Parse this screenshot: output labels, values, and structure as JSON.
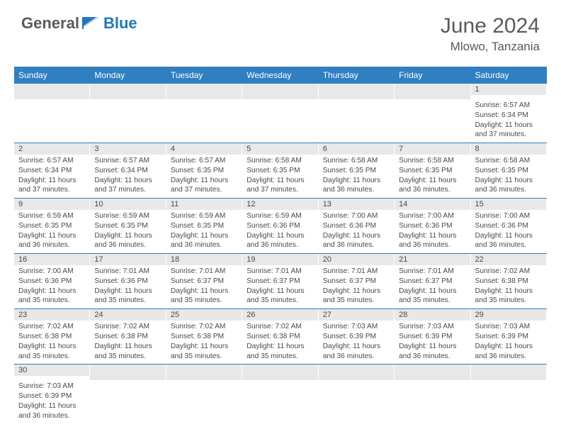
{
  "brand": {
    "part1": "General",
    "part2": "Blue"
  },
  "title": "June 2024",
  "location": "Mlowo, Tanzania",
  "colors": {
    "header_bg": "#2f7fc1",
    "header_text": "#ffffff",
    "daynum_bg": "#e8e8e8",
    "text": "#4a4a4a",
    "rule": "#2f7fc1"
  },
  "days_of_week": [
    "Sunday",
    "Monday",
    "Tuesday",
    "Wednesday",
    "Thursday",
    "Friday",
    "Saturday"
  ],
  "weeks": [
    [
      {
        "n": "",
        "sr": "",
        "ss": "",
        "dl": ""
      },
      {
        "n": "",
        "sr": "",
        "ss": "",
        "dl": ""
      },
      {
        "n": "",
        "sr": "",
        "ss": "",
        "dl": ""
      },
      {
        "n": "",
        "sr": "",
        "ss": "",
        "dl": ""
      },
      {
        "n": "",
        "sr": "",
        "ss": "",
        "dl": ""
      },
      {
        "n": "",
        "sr": "",
        "ss": "",
        "dl": ""
      },
      {
        "n": "1",
        "sr": "Sunrise: 6:57 AM",
        "ss": "Sunset: 6:34 PM",
        "dl": "Daylight: 11 hours and 37 minutes."
      }
    ],
    [
      {
        "n": "2",
        "sr": "Sunrise: 6:57 AM",
        "ss": "Sunset: 6:34 PM",
        "dl": "Daylight: 11 hours and 37 minutes."
      },
      {
        "n": "3",
        "sr": "Sunrise: 6:57 AM",
        "ss": "Sunset: 6:34 PM",
        "dl": "Daylight: 11 hours and 37 minutes."
      },
      {
        "n": "4",
        "sr": "Sunrise: 6:57 AM",
        "ss": "Sunset: 6:35 PM",
        "dl": "Daylight: 11 hours and 37 minutes."
      },
      {
        "n": "5",
        "sr": "Sunrise: 6:58 AM",
        "ss": "Sunset: 6:35 PM",
        "dl": "Daylight: 11 hours and 37 minutes."
      },
      {
        "n": "6",
        "sr": "Sunrise: 6:58 AM",
        "ss": "Sunset: 6:35 PM",
        "dl": "Daylight: 11 hours and 36 minutes."
      },
      {
        "n": "7",
        "sr": "Sunrise: 6:58 AM",
        "ss": "Sunset: 6:35 PM",
        "dl": "Daylight: 11 hours and 36 minutes."
      },
      {
        "n": "8",
        "sr": "Sunrise: 6:58 AM",
        "ss": "Sunset: 6:35 PM",
        "dl": "Daylight: 11 hours and 36 minutes."
      }
    ],
    [
      {
        "n": "9",
        "sr": "Sunrise: 6:59 AM",
        "ss": "Sunset: 6:35 PM",
        "dl": "Daylight: 11 hours and 36 minutes."
      },
      {
        "n": "10",
        "sr": "Sunrise: 6:59 AM",
        "ss": "Sunset: 6:35 PM",
        "dl": "Daylight: 11 hours and 36 minutes."
      },
      {
        "n": "11",
        "sr": "Sunrise: 6:59 AM",
        "ss": "Sunset: 6:35 PM",
        "dl": "Daylight: 11 hours and 36 minutes."
      },
      {
        "n": "12",
        "sr": "Sunrise: 6:59 AM",
        "ss": "Sunset: 6:36 PM",
        "dl": "Daylight: 11 hours and 36 minutes."
      },
      {
        "n": "13",
        "sr": "Sunrise: 7:00 AM",
        "ss": "Sunset: 6:36 PM",
        "dl": "Daylight: 11 hours and 36 minutes."
      },
      {
        "n": "14",
        "sr": "Sunrise: 7:00 AM",
        "ss": "Sunset: 6:36 PM",
        "dl": "Daylight: 11 hours and 36 minutes."
      },
      {
        "n": "15",
        "sr": "Sunrise: 7:00 AM",
        "ss": "Sunset: 6:36 PM",
        "dl": "Daylight: 11 hours and 36 minutes."
      }
    ],
    [
      {
        "n": "16",
        "sr": "Sunrise: 7:00 AM",
        "ss": "Sunset: 6:36 PM",
        "dl": "Daylight: 11 hours and 35 minutes."
      },
      {
        "n": "17",
        "sr": "Sunrise: 7:01 AM",
        "ss": "Sunset: 6:36 PM",
        "dl": "Daylight: 11 hours and 35 minutes."
      },
      {
        "n": "18",
        "sr": "Sunrise: 7:01 AM",
        "ss": "Sunset: 6:37 PM",
        "dl": "Daylight: 11 hours and 35 minutes."
      },
      {
        "n": "19",
        "sr": "Sunrise: 7:01 AM",
        "ss": "Sunset: 6:37 PM",
        "dl": "Daylight: 11 hours and 35 minutes."
      },
      {
        "n": "20",
        "sr": "Sunrise: 7:01 AM",
        "ss": "Sunset: 6:37 PM",
        "dl": "Daylight: 11 hours and 35 minutes."
      },
      {
        "n": "21",
        "sr": "Sunrise: 7:01 AM",
        "ss": "Sunset: 6:37 PM",
        "dl": "Daylight: 11 hours and 35 minutes."
      },
      {
        "n": "22",
        "sr": "Sunrise: 7:02 AM",
        "ss": "Sunset: 6:38 PM",
        "dl": "Daylight: 11 hours and 35 minutes."
      }
    ],
    [
      {
        "n": "23",
        "sr": "Sunrise: 7:02 AM",
        "ss": "Sunset: 6:38 PM",
        "dl": "Daylight: 11 hours and 35 minutes."
      },
      {
        "n": "24",
        "sr": "Sunrise: 7:02 AM",
        "ss": "Sunset: 6:38 PM",
        "dl": "Daylight: 11 hours and 35 minutes."
      },
      {
        "n": "25",
        "sr": "Sunrise: 7:02 AM",
        "ss": "Sunset: 6:38 PM",
        "dl": "Daylight: 11 hours and 35 minutes."
      },
      {
        "n": "26",
        "sr": "Sunrise: 7:02 AM",
        "ss": "Sunset: 6:38 PM",
        "dl": "Daylight: 11 hours and 35 minutes."
      },
      {
        "n": "27",
        "sr": "Sunrise: 7:03 AM",
        "ss": "Sunset: 6:39 PM",
        "dl": "Daylight: 11 hours and 36 minutes."
      },
      {
        "n": "28",
        "sr": "Sunrise: 7:03 AM",
        "ss": "Sunset: 6:39 PM",
        "dl": "Daylight: 11 hours and 36 minutes."
      },
      {
        "n": "29",
        "sr": "Sunrise: 7:03 AM",
        "ss": "Sunset: 6:39 PM",
        "dl": "Daylight: 11 hours and 36 minutes."
      }
    ],
    [
      {
        "n": "30",
        "sr": "Sunrise: 7:03 AM",
        "ss": "Sunset: 6:39 PM",
        "dl": "Daylight: 11 hours and 36 minutes."
      },
      {
        "n": "",
        "sr": "",
        "ss": "",
        "dl": ""
      },
      {
        "n": "",
        "sr": "",
        "ss": "",
        "dl": ""
      },
      {
        "n": "",
        "sr": "",
        "ss": "",
        "dl": ""
      },
      {
        "n": "",
        "sr": "",
        "ss": "",
        "dl": ""
      },
      {
        "n": "",
        "sr": "",
        "ss": "",
        "dl": ""
      },
      {
        "n": "",
        "sr": "",
        "ss": "",
        "dl": ""
      }
    ]
  ]
}
